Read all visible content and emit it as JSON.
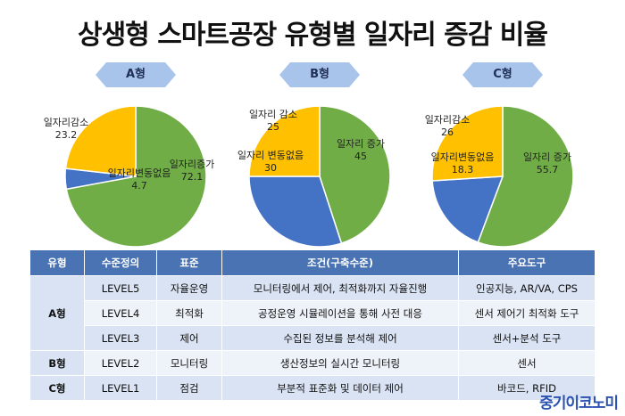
{
  "title": "상생형 스마트공장 유형별 일자리 증감 비율",
  "chart_data": [
    {
      "type": "pie",
      "title": "A형",
      "slices": [
        {
          "label": "일자리증가",
          "value": 72.1,
          "color": "#70ad47"
        },
        {
          "label": "일자리변동없음",
          "value": 4.7,
          "color": "#4472c4"
        },
        {
          "label": "일자리감소",
          "value": 23.2,
          "color": "#ffc000"
        }
      ]
    },
    {
      "type": "pie",
      "title": "B형",
      "slices": [
        {
          "label": "일자리 증가",
          "value": 45,
          "color": "#70ad47"
        },
        {
          "label": "일자리 변동없음",
          "value": 30,
          "color": "#4472c4"
        },
        {
          "label": "일자리 감소",
          "value": 25,
          "color": "#ffc000"
        }
      ]
    },
    {
      "type": "pie",
      "title": "C형",
      "slices": [
        {
          "label": "일자리 증가",
          "value": 55.7,
          "color": "#70ad47"
        },
        {
          "label": "일자리변동없음",
          "value": 18.3,
          "color": "#4472c4"
        },
        {
          "label": "일자리감소",
          "value": 26,
          "color": "#ffc000"
        }
      ]
    }
  ],
  "badge_color": "#a9c4eb",
  "table": {
    "headers": [
      "유형",
      "수준정의",
      "표준",
      "조건(구축수준)",
      "주요도구"
    ],
    "groups": [
      {
        "type": "A형",
        "rows": [
          {
            "level": "LEVEL5",
            "standard": "자율운영",
            "condition": "모니터링에서 제어, 최적화까지 자율진행",
            "tools": "인공지능, AR/VA, CPS"
          },
          {
            "level": "LEVEL4",
            "standard": "최적화",
            "condition": "공정운영 시뮬레이션을 통해 사전 대응",
            "tools": "센서 제어기 최적화 도구"
          },
          {
            "level": "LEVEL3",
            "standard": "제어",
            "condition": "수집된 정보를 분석해 제어",
            "tools": "센서+분석 도구"
          }
        ]
      },
      {
        "type": "B형",
        "rows": [
          {
            "level": "LEVEL2",
            "standard": "모니터링",
            "condition": "생산정보의 실시간 모니터링",
            "tools": "센서"
          }
        ]
      },
      {
        "type": "C형",
        "rows": [
          {
            "level": "LEVEL1",
            "standard": "점검",
            "condition": "부분적 표준화 및 데이터 제어",
            "tools": "바코드, RFID"
          }
        ]
      }
    ]
  },
  "brand": "중기이코노미"
}
